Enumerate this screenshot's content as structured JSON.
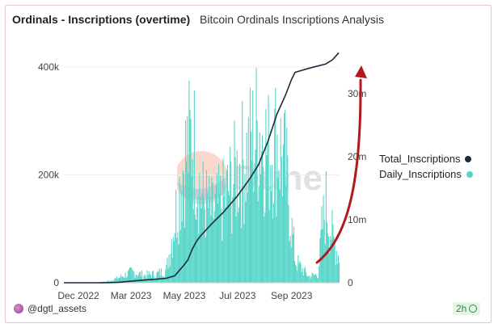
{
  "header": {
    "title": "Ordinals - Inscriptions (overtime)",
    "subtitle": "Bitcoin Ordinals Inscriptions Analysis"
  },
  "footer": {
    "user": "@dgtl_assets",
    "refresh": "2h"
  },
  "watermark": "Dune",
  "colors": {
    "daily": "#5ad6c8",
    "total": "#1c2a3a",
    "arrow": "#b0191e"
  },
  "chart_data": {
    "type": "bar",
    "x_ticks": [
      "Dec 2022",
      "Mar 2023",
      "May 2023",
      "Jul 2023",
      "Sep 2023"
    ],
    "x_range": [
      "2022-12-14",
      "2023-10-25"
    ],
    "y_left": {
      "ticks": [
        "0",
        "200k",
        "400k"
      ],
      "range": [
        0,
        400000
      ],
      "grid": true
    },
    "y_right": {
      "ticks": [
        "0",
        "10m",
        "20m",
        "30m"
      ],
      "range": [
        0,
        35000000
      ]
    },
    "legend_position": "right",
    "series": [
      {
        "name": "Total_Inscriptions",
        "type": "line",
        "axis": "right",
        "points": [
          [
            "2022-12-14",
            0
          ],
          [
            "2023-01-20",
            0
          ],
          [
            "2023-02-01",
            10000
          ],
          [
            "2023-02-15",
            80000
          ],
          [
            "2023-03-01",
            250000
          ],
          [
            "2023-03-15",
            420000
          ],
          [
            "2023-03-30",
            560000
          ],
          [
            "2023-04-10",
            700000
          ],
          [
            "2023-04-20",
            1100000
          ],
          [
            "2023-04-30",
            2700000
          ],
          [
            "2023-05-05",
            3600000
          ],
          [
            "2023-05-10",
            5300000
          ],
          [
            "2023-05-15",
            6600000
          ],
          [
            "2023-05-20",
            7500000
          ],
          [
            "2023-06-01",
            9300000
          ],
          [
            "2023-06-15",
            11200000
          ],
          [
            "2023-07-01",
            13800000
          ],
          [
            "2023-07-15",
            16500000
          ],
          [
            "2023-07-25",
            18700000
          ],
          [
            "2023-08-05",
            22500000
          ],
          [
            "2023-08-15",
            26700000
          ],
          [
            "2023-08-25",
            29800000
          ],
          [
            "2023-09-01",
            32300000
          ],
          [
            "2023-09-05",
            33400000
          ],
          [
            "2023-09-20",
            34000000
          ],
          [
            "2023-10-01",
            34400000
          ],
          [
            "2023-10-10",
            34700000
          ],
          [
            "2023-10-18",
            35400000
          ],
          [
            "2023-10-25",
            36500000
          ]
        ]
      },
      {
        "name": "Daily_Inscriptions",
        "type": "bar",
        "axis": "left",
        "daily_envelope": [
          [
            "2022-12-14",
            0
          ],
          [
            "2023-01-20",
            500
          ],
          [
            "2023-02-01",
            3000
          ],
          [
            "2023-02-15",
            12000
          ],
          [
            "2023-03-01",
            25000
          ],
          [
            "2023-03-15",
            18000
          ],
          [
            "2023-03-30",
            20000
          ],
          [
            "2023-04-10",
            30000
          ],
          [
            "2023-04-20",
            150000
          ],
          [
            "2023-04-30",
            280000
          ],
          [
            "2023-05-10",
            340000
          ],
          [
            "2023-05-20",
            200000
          ],
          [
            "2023-06-01",
            160000
          ],
          [
            "2023-06-15",
            190000
          ],
          [
            "2023-07-01",
            260000
          ],
          [
            "2023-07-15",
            310000
          ],
          [
            "2023-07-25",
            360000
          ],
          [
            "2023-08-05",
            300000
          ],
          [
            "2023-08-15",
            330000
          ],
          [
            "2023-08-25",
            260000
          ],
          [
            "2023-09-01",
            120000
          ],
          [
            "2023-09-05",
            50000
          ],
          [
            "2023-09-20",
            15000
          ],
          [
            "2023-10-01",
            20000
          ],
          [
            "2023-10-05",
            120000
          ],
          [
            "2023-10-10",
            180000
          ],
          [
            "2023-10-18",
            100000
          ],
          [
            "2023-10-25",
            60000
          ]
        ]
      }
    ]
  }
}
